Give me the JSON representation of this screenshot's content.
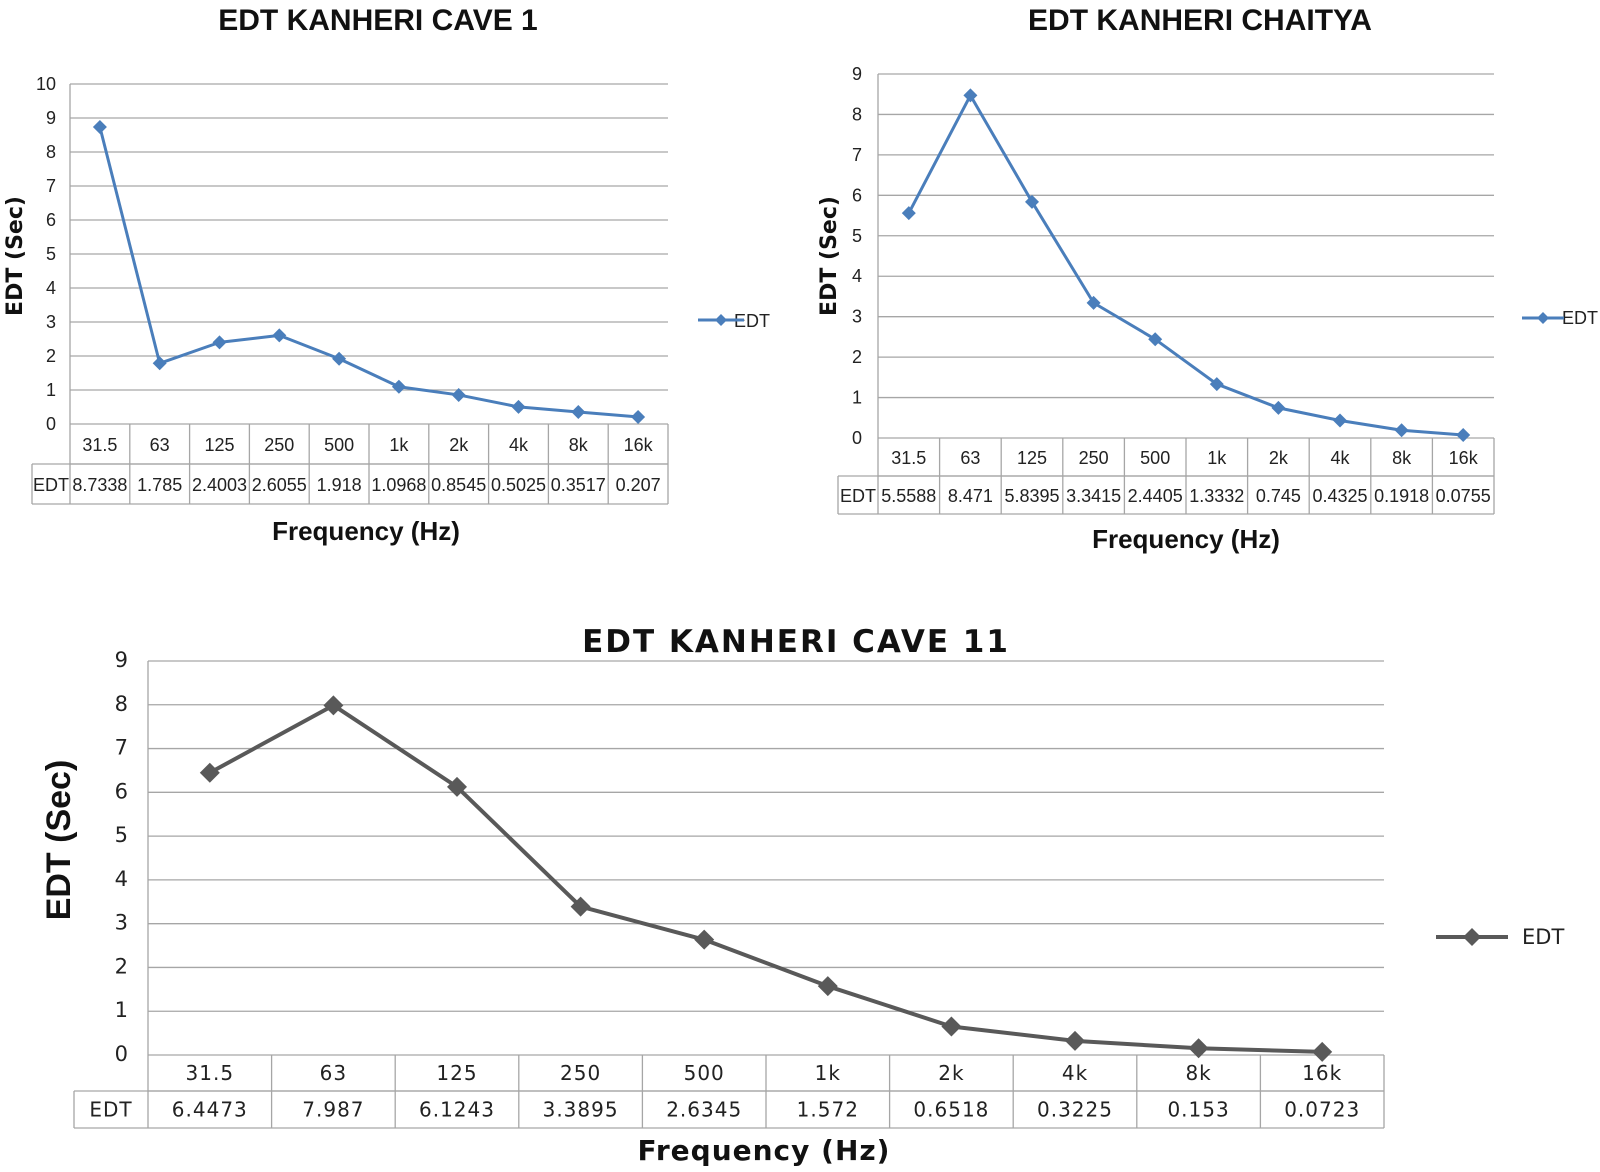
{
  "chart_data": [
    {
      "type": "line",
      "title": "EDT KANHERI CAVE 1",
      "xlabel": "Frequency (Hz)",
      "ylabel": "EDT (Sec)",
      "ylim": [
        0,
        10
      ],
      "yticks": [
        "0",
        "1",
        "2",
        "3",
        "4",
        "5",
        "6",
        "7",
        "8",
        "9",
        "10"
      ],
      "grid": true,
      "legend": "right",
      "color": "#4a7ebb",
      "categories": [
        "31.5",
        "63",
        "125",
        "250",
        "500",
        "1k",
        "2k",
        "4k",
        "8k",
        "16k"
      ],
      "series": [
        {
          "name": "EDT",
          "values": [
            8.7338,
            1.785,
            2.4003,
            2.6055,
            1.918,
            1.0968,
            0.8545,
            0.5025,
            0.3517,
            0.207
          ]
        }
      ],
      "table_labels": [
        "8.7338",
        "1.785",
        "2.4003",
        "2.6055",
        "1.918",
        "1.0968",
        "0.8545",
        "0.5025",
        "0.3517",
        "0.207"
      ]
    },
    {
      "type": "line",
      "title": "EDT KANHERI CHAITYA",
      "xlabel": "Frequency (Hz)",
      "ylabel": "EDT (Sec)",
      "ylim": [
        0,
        9
      ],
      "yticks": [
        "0",
        "1",
        "2",
        "3",
        "4",
        "5",
        "6",
        "7",
        "8",
        "9"
      ],
      "grid": true,
      "legend": "right",
      "color": "#4a7ebb",
      "categories": [
        "31.5",
        "63",
        "125",
        "250",
        "500",
        "1k",
        "2k",
        "4k",
        "8k",
        "16k"
      ],
      "series": [
        {
          "name": "EDT",
          "values": [
            5.5588,
            8.471,
            5.8395,
            3.3415,
            2.4405,
            1.3332,
            0.745,
            0.4325,
            0.1918,
            0.0755
          ]
        }
      ],
      "table_labels": [
        "5.5588",
        "8.471",
        "5.8395",
        "3.3415",
        "2.4405",
        "1.3332",
        "0.745",
        "0.4325",
        "0.1918",
        "0.0755"
      ]
    },
    {
      "type": "line",
      "title": "EDT KANHERI CAVE 11",
      "xlabel": "Frequency (Hz)",
      "ylabel": "EDT (Sec)",
      "ylim": [
        0,
        9
      ],
      "yticks": [
        "0",
        "1",
        "2",
        "3",
        "4",
        "5",
        "6",
        "7",
        "8",
        "9"
      ],
      "grid": true,
      "legend": "right",
      "color": "#595959",
      "categories": [
        "31.5",
        "63",
        "125",
        "250",
        "500",
        "1k",
        "2k",
        "4k",
        "8k",
        "16k"
      ],
      "series": [
        {
          "name": "EDT",
          "values": [
            6.4473,
            7.987,
            6.1243,
            3.3895,
            2.6345,
            1.572,
            0.6518,
            0.3225,
            0.153,
            0.0723
          ]
        }
      ],
      "table_labels": [
        "6.4473",
        "7.987",
        "6.1243",
        "3.3895",
        "2.6345",
        "1.572",
        "0.6518",
        "0.3225",
        "0.153",
        "0.0723"
      ]
    }
  ]
}
